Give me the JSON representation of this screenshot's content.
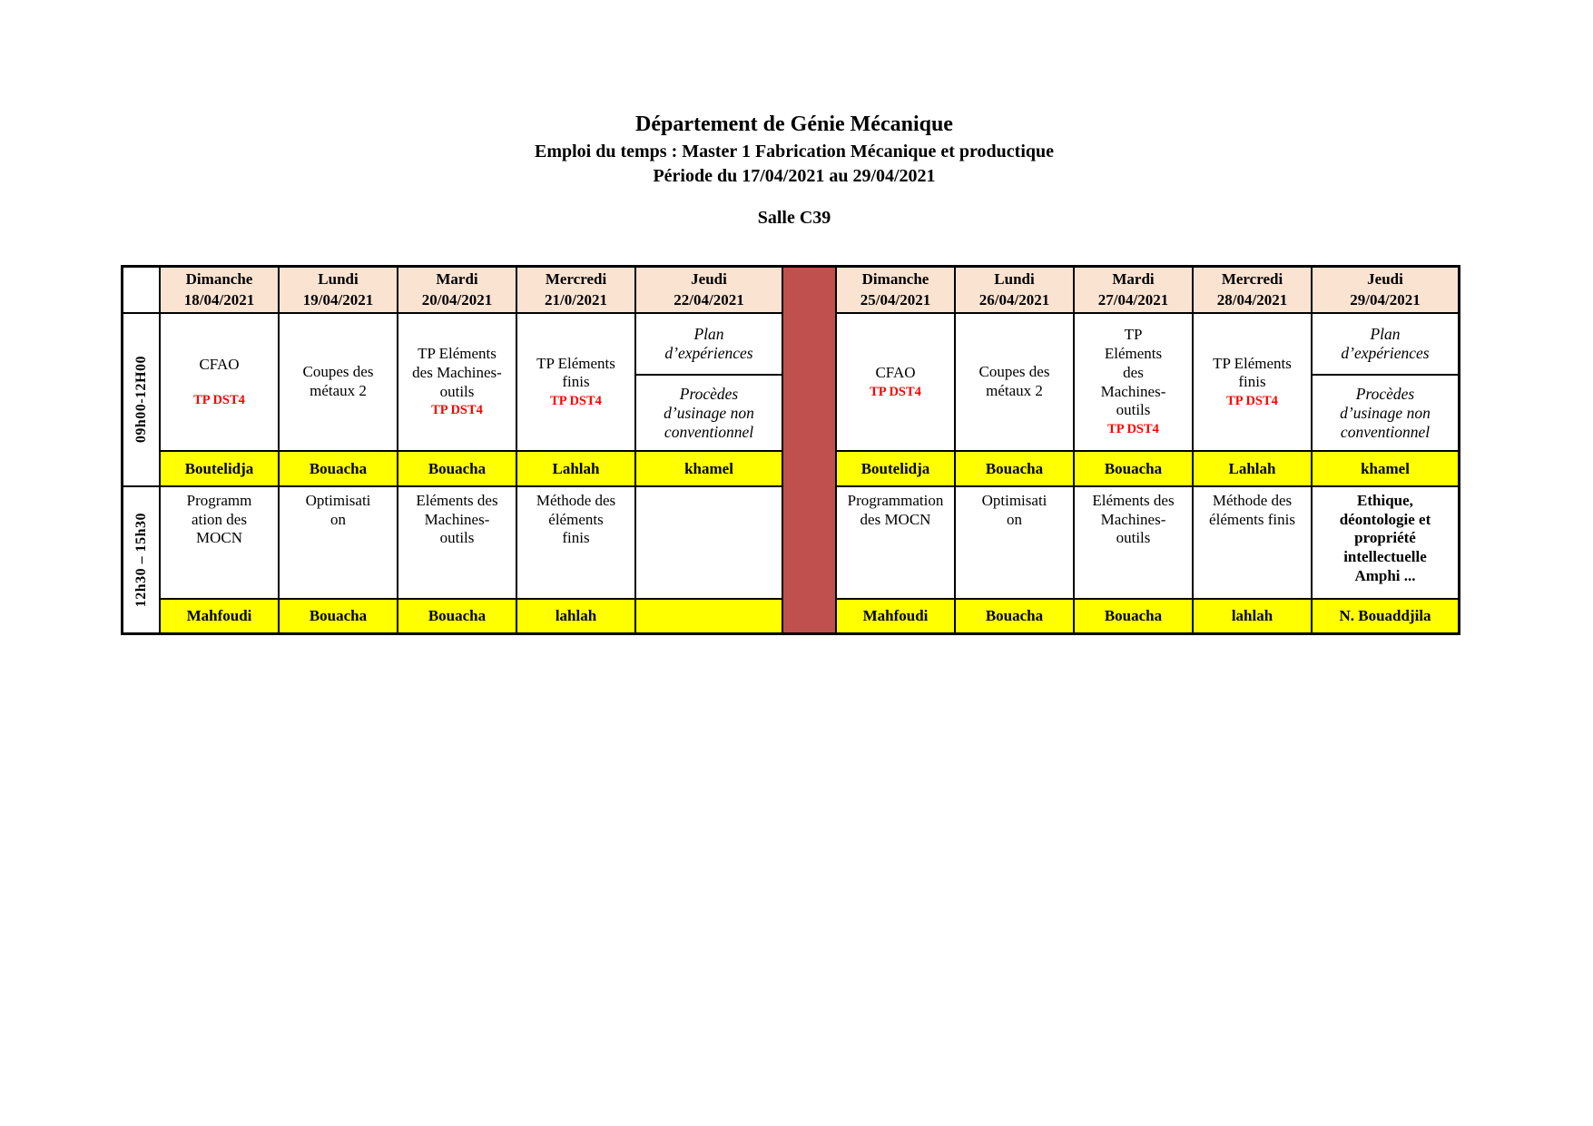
{
  "doc": {
    "title_line1": "Département de Génie Mécanique",
    "title_line2": "Emploi du temps : Master 1 Fabrication Mécanique et productique",
    "title_line3": "Période du 17/04/2021 au 29/04/2021",
    "room": "Salle C39"
  },
  "colors": {
    "header_bg": "#FAE3D1",
    "week_separator": "#C0504D",
    "teacher_highlight": "#FFFF00",
    "note_red": "#FF0000"
  },
  "tt": {
    "time_slots": [
      "09h00-12H00",
      "12h30 – 15h30"
    ],
    "w1": {
      "days": [
        {
          "name": "Dimanche",
          "date": "18/04/2021"
        },
        {
          "name": "Lundi",
          "date": "19/04/2021"
        },
        {
          "name": "Mardi",
          "date": "20/04/2021"
        },
        {
          "name": "Mercredi",
          "date": "21/0/2021"
        },
        {
          "name": "Jeudi",
          "date": "22/04/2021"
        }
      ],
      "morning": {
        "c0": {
          "title": "CFAO",
          "note": "TP DST4"
        },
        "c1": {
          "title": "Coupes des\nmétaux 2",
          "note": ""
        },
        "c2": {
          "title": "TP Eléments\ndes Machines-\noutils",
          "note": "TP DST4"
        },
        "c3": {
          "title": "TP Eléments\nfinis",
          "note": "TP DST4"
        },
        "c4": {
          "top": "Plan\nd’expériences",
          "bottom": "Procèdes\nd’usinage non\nconventionnel"
        },
        "teachers": [
          "Boutelidja",
          "Bouacha",
          "Bouacha",
          "Lahlah",
          "khamel"
        ]
      },
      "afternoon": {
        "c0": "Programm\nation des\nMOCN",
        "c1": "Optimisati\non",
        "c2": "Eléments des\nMachines-\noutils",
        "c3": "Méthode des\néléments\nfinis",
        "c4": "",
        "teachers": [
          "Mahfoudi",
          "Bouacha",
          "Bouacha",
          "lahlah",
          ""
        ]
      }
    },
    "w2": {
      "days": [
        {
          "name": "Dimanche",
          "date": "25/04/2021"
        },
        {
          "name": "Lundi",
          "date": "26/04/2021"
        },
        {
          "name": "Mardi",
          "date": "27/04/2021"
        },
        {
          "name": "Mercredi",
          "date": "28/04/2021"
        },
        {
          "name": "Jeudi",
          "date": "29/04/2021"
        }
      ],
      "morning": {
        "c0": {
          "title": "CFAO",
          "note": "TP DST4"
        },
        "c1": {
          "title": "Coupes des\nmétaux 2",
          "note": ""
        },
        "c2": {
          "title": "TP\nEléments\ndes\nMachines-\noutils",
          "note": "TP DST4"
        },
        "c3": {
          "title": "TP Eléments\nfinis",
          "note": "TP DST4"
        },
        "c4": {
          "top": "Plan\nd’expériences",
          "bottom": "Procèdes\nd’usinage non\nconventionnel"
        },
        "teachers": [
          "Boutelidja",
          "Bouacha",
          "Bouacha",
          "Lahlah",
          "khamel"
        ]
      },
      "afternoon": {
        "c0": "Programmation\ndes MOCN",
        "c1": "Optimisati\non",
        "c2": "Eléments des\nMachines-\noutils",
        "c3": "Méthode des\néléments finis",
        "c4": "Ethique,\ndéontologie et\npropriété\nintellectuelle\nAmphi ...",
        "teachers": [
          "Mahfoudi",
          "Bouacha",
          "Bouacha",
          "lahlah",
          "N. Bouaddjila"
        ]
      }
    }
  }
}
